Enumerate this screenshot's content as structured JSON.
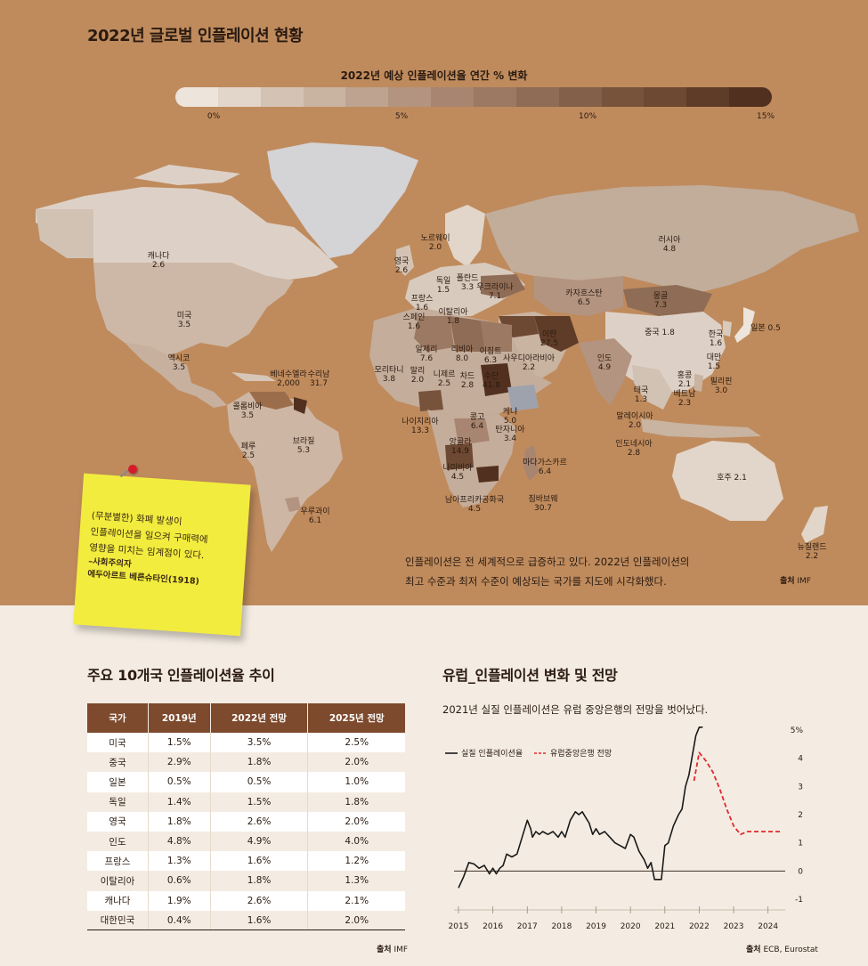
{
  "title": "2022년 글로벌 인플레이션 현황",
  "legend": {
    "title": "2022년 예상 인플레이션율 연간 % 변화",
    "ticks": [
      "0%",
      "5%",
      "10%",
      "15%"
    ],
    "colors": [
      "#ede4dc",
      "#e2d5c9",
      "#d4c3b4",
      "#c9b3a1",
      "#bda390",
      "#b39480",
      "#a78571",
      "#9c7963",
      "#8f6c55",
      "#836049",
      "#77533c",
      "#6d4832",
      "#5f3c28",
      "#52301f"
    ]
  },
  "countries": [
    {
      "name": "캐나다",
      "value": "2.6"
    },
    {
      "name": "미국",
      "value": "3.5"
    },
    {
      "name": "멕시코",
      "value": "3.5"
    },
    {
      "name": "베네수엘라",
      "value": "2,000"
    },
    {
      "name": "수리남",
      "value": "31.7"
    },
    {
      "name": "콜롬비아",
      "value": "3.5"
    },
    {
      "name": "페루",
      "value": "2.5"
    },
    {
      "name": "브라질",
      "value": "5.3"
    },
    {
      "name": "우루과이",
      "value": "6.1"
    },
    {
      "name": "노르웨이",
      "value": "2.0"
    },
    {
      "name": "영국",
      "value": "2.6"
    },
    {
      "name": "독일",
      "value": "1.5"
    },
    {
      "name": "폴란드",
      "value": "3.3"
    },
    {
      "name": "우크라이나",
      "value": "7.1"
    },
    {
      "name": "프랑스",
      "value": "1.6"
    },
    {
      "name": "이탈리아",
      "value": "1.8"
    },
    {
      "name": "스페인",
      "value": "1.6"
    },
    {
      "name": "모리타니",
      "value": "3.8"
    },
    {
      "name": "알제리",
      "value": "7.6"
    },
    {
      "name": "리비아",
      "value": "8.0"
    },
    {
      "name": "이집트",
      "value": "6.3"
    },
    {
      "name": "말리",
      "value": "2.0"
    },
    {
      "name": "니제르",
      "value": "2.5"
    },
    {
      "name": "차드",
      "value": "2.8"
    },
    {
      "name": "수단",
      "value": "41.8"
    },
    {
      "name": "사우디아라비아",
      "value": "2.2"
    },
    {
      "name": "이란",
      "value": "27.5"
    },
    {
      "name": "나이지리아",
      "value": "13.3"
    },
    {
      "name": "콩고",
      "value": "6.4"
    },
    {
      "name": "케냐",
      "value": "5.0"
    },
    {
      "name": "탄자니아",
      "value": "3.4"
    },
    {
      "name": "앙골라",
      "value": "14.9"
    },
    {
      "name": "나미비아",
      "value": "4.5"
    },
    {
      "name": "남아프리카공화국",
      "value": "4.5"
    },
    {
      "name": "짐바브웨",
      "value": "30.7"
    },
    {
      "name": "마다가스카르",
      "value": "6.4"
    },
    {
      "name": "카자흐스탄",
      "value": "6.5"
    },
    {
      "name": "러시아",
      "value": "4.8"
    },
    {
      "name": "몽골",
      "value": "7.3"
    },
    {
      "name": "중국",
      "value": "1.8"
    },
    {
      "name": "한국",
      "value": "1.6"
    },
    {
      "name": "일본",
      "value": "0.5"
    },
    {
      "name": "대만",
      "value": "1.5"
    },
    {
      "name": "인도",
      "value": "4.9"
    },
    {
      "name": "태국",
      "value": "1.3"
    },
    {
      "name": "홍콩",
      "value": "2.1"
    },
    {
      "name": "베트남",
      "value": "2.3"
    },
    {
      "name": "필리핀",
      "value": "3.0"
    },
    {
      "name": "말레이시아",
      "value": "2.0"
    },
    {
      "name": "인도네시아",
      "value": "2.8"
    },
    {
      "name": "호주",
      "value": "2.1"
    },
    {
      "name": "뉴질랜드",
      "value": "2.2"
    }
  ],
  "map_caption": {
    "line1": "인플레이션은 전 세계적으로 급증하고 있다. 2022년 인플레이션의",
    "line2": "최고 수준과 최저 수준이 예상되는 국가를 지도에 시각화했다."
  },
  "map_source": {
    "label": "출처",
    "value": "IMF"
  },
  "sticky_note": {
    "line1": "(무분별한) 화폐 발생이",
    "line2": "인플레이션을 일으켜 구매력에",
    "line3": "영향을 미치는 임계점이 있다.",
    "role": "–사회주의자",
    "author": "에두아르트 베른슈타인(1918)"
  },
  "table_section": {
    "title": "주요 10개국 인플레이션율 추이",
    "headers": [
      "국가",
      "2019년",
      "2022년 전망",
      "2025년 전망"
    ],
    "rows": [
      [
        "미국",
        "1.5%",
        "3.5%",
        "2.5%"
      ],
      [
        "중국",
        "2.9%",
        "1.8%",
        "2.0%"
      ],
      [
        "일본",
        "0.5%",
        "0.5%",
        "1.0%"
      ],
      [
        "독일",
        "1.4%",
        "1.5%",
        "1.8%"
      ],
      [
        "영국",
        "1.8%",
        "2.6%",
        "2.0%"
      ],
      [
        "인도",
        "4.8%",
        "4.9%",
        "4.0%"
      ],
      [
        "프랑스",
        "1.3%",
        "1.6%",
        "1.2%"
      ],
      [
        "이탈리아",
        "0.6%",
        "1.8%",
        "1.3%"
      ],
      [
        "캐나다",
        "1.9%",
        "2.6%",
        "2.1%"
      ],
      [
        "대한민국",
        "0.4%",
        "1.6%",
        "2.0%"
      ]
    ],
    "source": {
      "label": "출처",
      "value": "IMF"
    }
  },
  "chart_section": {
    "title": "유럽_인플레이션 변화 및 전망",
    "subtitle": "2021년 실질 인플레이션은 유럽 중앙은행의 전망을 벗어났다.",
    "source": {
      "label": "출처",
      "value": "ECB, Eurostat"
    }
  },
  "chart_data": {
    "type": "line",
    "xlim": [
      2015,
      2024.5
    ],
    "ylim": [
      -1,
      5
    ],
    "x_ticks": [
      2015,
      2016,
      2017,
      2018,
      2019,
      2020,
      2021,
      2022,
      2023,
      2024
    ],
    "y_ticks": [
      -1,
      0,
      1,
      2,
      3,
      4,
      5
    ],
    "y_tick_labels": [
      "-1",
      "0",
      "1",
      "2",
      "3",
      "4",
      "5%"
    ],
    "series": [
      {
        "name": "실질 인플레이션율",
        "style": "solid",
        "color": "#1a1a1a",
        "x": [
          2015.0,
          2015.15,
          2015.3,
          2015.45,
          2015.6,
          2015.75,
          2015.9,
          2016.0,
          2016.1,
          2016.2,
          2016.3,
          2016.4,
          2016.55,
          2016.7,
          2016.85,
          2017.0,
          2017.1,
          2017.15,
          2017.25,
          2017.35,
          2017.45,
          2017.6,
          2017.75,
          2017.9,
          2018.0,
          2018.1,
          2018.25,
          2018.4,
          2018.5,
          2018.6,
          2018.7,
          2018.8,
          2018.9,
          2019.0,
          2019.1,
          2019.25,
          2019.4,
          2019.55,
          2019.7,
          2019.85,
          2020.0,
          2020.1,
          2020.25,
          2020.4,
          2020.5,
          2020.6,
          2020.7,
          2020.8,
          2020.9,
          2021.0,
          2021.1,
          2021.25,
          2021.4,
          2021.5,
          2021.6,
          2021.7,
          2021.8,
          2021.9,
          2022.0,
          2022.1
        ],
        "y": [
          -0.6,
          -0.2,
          0.3,
          0.25,
          0.1,
          0.2,
          -0.1,
          0.1,
          -0.1,
          0.1,
          0.2,
          0.6,
          0.5,
          0.6,
          1.2,
          1.8,
          1.5,
          1.2,
          1.4,
          1.3,
          1.4,
          1.3,
          1.4,
          1.2,
          1.4,
          1.2,
          1.8,
          2.1,
          2.0,
          2.1,
          1.9,
          1.7,
          1.3,
          1.5,
          1.3,
          1.4,
          1.2,
          1.0,
          0.9,
          0.8,
          1.3,
          1.2,
          0.7,
          0.4,
          0.1,
          0.3,
          -0.3,
          -0.3,
          -0.3,
          0.9,
          1.0,
          1.6,
          2.0,
          2.2,
          3.0,
          3.4,
          4.1,
          4.8,
          5.1,
          5.1
        ]
      },
      {
        "name": "유럽중앙은행 전망",
        "style": "dashed",
        "color": "#e0282d",
        "x": [
          2021.85,
          2022.0,
          2022.2,
          2022.4,
          2022.6,
          2022.8,
          2023.0,
          2023.2,
          2023.4,
          2023.7,
          2024.0,
          2024.4
        ],
        "y": [
          3.2,
          4.2,
          3.9,
          3.5,
          2.9,
          2.2,
          1.6,
          1.3,
          1.4,
          1.4,
          1.4,
          1.4
        ]
      }
    ]
  }
}
